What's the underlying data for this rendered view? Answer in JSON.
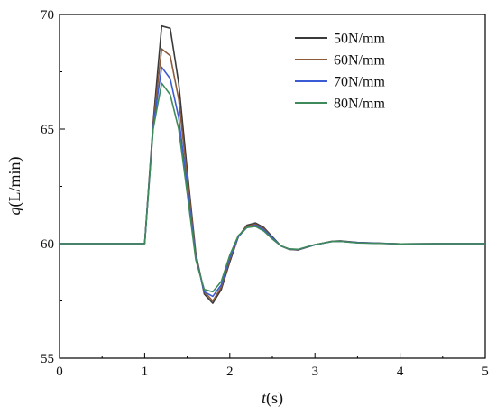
{
  "chart_data": {
    "type": "line",
    "title": "",
    "xlabel": {
      "var": "t",
      "unit": "(s)"
    },
    "ylabel": {
      "var": "q",
      "unit": "(L/min)"
    },
    "xlim": [
      0,
      5
    ],
    "ylim": [
      55,
      70
    ],
    "x_ticks": [
      0,
      1,
      2,
      3,
      4,
      5
    ],
    "y_ticks": [
      55,
      60,
      65,
      70
    ],
    "grid": false,
    "legend_position": "top-right",
    "x": [
      0,
      0.5,
      1.0,
      1.1,
      1.2,
      1.3,
      1.4,
      1.5,
      1.6,
      1.7,
      1.8,
      1.9,
      2.0,
      2.1,
      2.2,
      2.3,
      2.4,
      2.5,
      2.6,
      2.7,
      2.8,
      3.0,
      3.2,
      3.3,
      3.5,
      4.0,
      4.5,
      5.0
    ],
    "series": [
      {
        "name": "50N/mm",
        "color": "#3a3a3a",
        "values": [
          60,
          60,
          60,
          65.3,
          69.5,
          69.4,
          67.0,
          63.2,
          59.6,
          57.8,
          57.4,
          58.0,
          59.2,
          60.3,
          60.8,
          60.9,
          60.7,
          60.3,
          59.9,
          59.75,
          59.72,
          59.95,
          60.1,
          60.12,
          60.05,
          59.99,
          60.0,
          60.0
        ]
      },
      {
        "name": "60N/mm",
        "color": "#8b5a3c",
        "values": [
          60,
          60,
          60,
          65.2,
          68.5,
          68.2,
          66.3,
          62.9,
          59.5,
          57.9,
          57.5,
          58.1,
          59.3,
          60.3,
          60.75,
          60.85,
          60.65,
          60.25,
          59.9,
          59.75,
          59.73,
          59.95,
          60.1,
          60.11,
          60.04,
          59.99,
          60.0,
          60.0
        ]
      },
      {
        "name": "70N/mm",
        "color": "#3b5bd6",
        "values": [
          60,
          60,
          60,
          65.1,
          67.7,
          67.2,
          65.5,
          62.5,
          59.4,
          57.9,
          57.7,
          58.2,
          59.4,
          60.3,
          60.7,
          60.8,
          60.6,
          60.25,
          59.9,
          59.76,
          59.74,
          59.95,
          60.09,
          60.1,
          60.04,
          59.99,
          60.0,
          60.0
        ]
      },
      {
        "name": "80N/mm",
        "color": "#3f8a5a",
        "values": [
          60,
          60,
          60,
          65.0,
          67.0,
          66.5,
          65.0,
          62.2,
          59.3,
          58.0,
          57.9,
          58.35,
          59.5,
          60.35,
          60.7,
          60.75,
          60.55,
          60.2,
          59.9,
          59.77,
          59.75,
          59.96,
          60.09,
          60.1,
          60.03,
          59.99,
          60.0,
          60.0
        ]
      }
    ]
  }
}
